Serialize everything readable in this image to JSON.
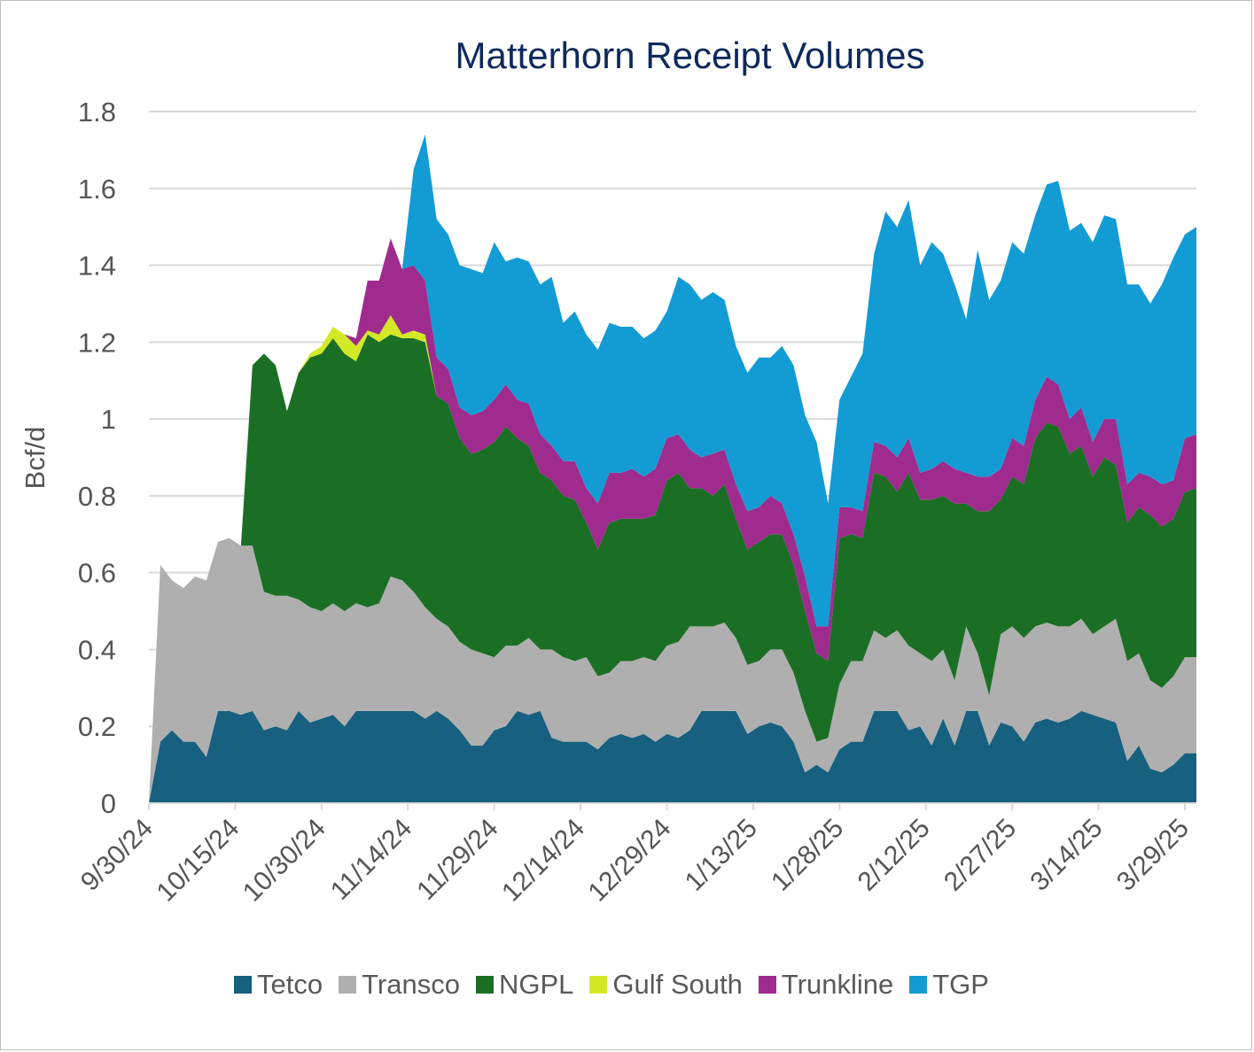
{
  "chart_data": {
    "type": "area",
    "stacked": true,
    "title": "Matterhorn Receipt Volumes",
    "ylabel": "Bcf/d",
    "xlabel": "",
    "ylim": [
      0,
      1.8
    ],
    "y_ticks": [
      "0",
      "0.2",
      "0.4",
      "0.6",
      "0.8",
      "1",
      "1.2",
      "1.4",
      "1.6",
      "1.8"
    ],
    "x_ticks": [
      "9/30/24",
      "10/15/24",
      "10/30/24",
      "11/14/24",
      "11/29/24",
      "12/14/24",
      "12/29/24",
      "1/13/25",
      "1/28/25",
      "2/12/25",
      "2/27/25",
      "3/14/25",
      "3/29/25"
    ],
    "gridlines": true,
    "legend_position": "bottom",
    "day_range": [
      0,
      182
    ],
    "series": [
      {
        "name": "Tetco",
        "color": "#17607f",
        "x": [
          0,
          2,
          4,
          6,
          8,
          10,
          12,
          14,
          16,
          18,
          20,
          22,
          24,
          26,
          28,
          30,
          32,
          34,
          36,
          38,
          40,
          42,
          44,
          46,
          48,
          50,
          52,
          54,
          56,
          58,
          60,
          62,
          64,
          66,
          68,
          70,
          72,
          74,
          76,
          78,
          80,
          82,
          84,
          86,
          88,
          90,
          92,
          94,
          96,
          98,
          100,
          102,
          104,
          106,
          108,
          110,
          112,
          114,
          116,
          118,
          120,
          122,
          124,
          126,
          128,
          130,
          132,
          134,
          136,
          138,
          140,
          142,
          144,
          146,
          148,
          150,
          152,
          154,
          156,
          158,
          160,
          162,
          164,
          166,
          168,
          170,
          172,
          174,
          176,
          178,
          180,
          182
        ],
        "values": [
          0,
          0.16,
          0.19,
          0.16,
          0.16,
          0.12,
          0.24,
          0.24,
          0.23,
          0.24,
          0.19,
          0.2,
          0.19,
          0.24,
          0.21,
          0.22,
          0.23,
          0.2,
          0.24,
          0.24,
          0.24,
          0.24,
          0.24,
          0.24,
          0.22,
          0.24,
          0.22,
          0.19,
          0.15,
          0.15,
          0.19,
          0.2,
          0.24,
          0.23,
          0.24,
          0.17,
          0.16,
          0.16,
          0.16,
          0.14,
          0.17,
          0.18,
          0.17,
          0.18,
          0.16,
          0.18,
          0.17,
          0.19,
          0.24,
          0.24,
          0.24,
          0.24,
          0.18,
          0.2,
          0.21,
          0.2,
          0.16,
          0.08,
          0.1,
          0.08,
          0.14,
          0.16,
          0.16,
          0.24,
          0.24,
          0.24,
          0.19,
          0.2,
          0.15,
          0.22,
          0.15,
          0.24,
          0.24,
          0.15,
          0.21,
          0.2,
          0.16,
          0.21,
          0.22,
          0.21,
          0.22,
          0.24,
          0.23,
          0.22,
          0.21,
          0.11,
          0.15,
          0.09,
          0.08,
          0.1,
          0.13,
          0.13
        ]
      },
      {
        "name": "Transco",
        "color": "#afafaf",
        "x": [
          0,
          2,
          4,
          6,
          8,
          10,
          12,
          14,
          16,
          18,
          20,
          22,
          24,
          26,
          28,
          30,
          32,
          34,
          36,
          38,
          40,
          42,
          44,
          46,
          48,
          50,
          52,
          54,
          56,
          58,
          60,
          62,
          64,
          66,
          68,
          70,
          72,
          74,
          76,
          78,
          80,
          82,
          84,
          86,
          88,
          90,
          92,
          94,
          96,
          98,
          100,
          102,
          104,
          106,
          108,
          110,
          112,
          114,
          116,
          118,
          120,
          122,
          124,
          126,
          128,
          130,
          132,
          134,
          136,
          138,
          140,
          142,
          144,
          146,
          148,
          150,
          152,
          154,
          156,
          158,
          160,
          162,
          164,
          166,
          168,
          170,
          172,
          174,
          176,
          178,
          180,
          182
        ],
        "values": [
          0,
          0.46,
          0.39,
          0.4,
          0.43,
          0.46,
          0.44,
          0.45,
          0.44,
          0.43,
          0.36,
          0.34,
          0.35,
          0.29,
          0.3,
          0.28,
          0.29,
          0.3,
          0.28,
          0.27,
          0.28,
          0.35,
          0.34,
          0.31,
          0.29,
          0.24,
          0.24,
          0.23,
          0.25,
          0.24,
          0.19,
          0.21,
          0.17,
          0.2,
          0.16,
          0.23,
          0.22,
          0.21,
          0.22,
          0.19,
          0.17,
          0.19,
          0.2,
          0.2,
          0.21,
          0.23,
          0.25,
          0.27,
          0.22,
          0.22,
          0.23,
          0.19,
          0.18,
          0.17,
          0.19,
          0.2,
          0.18,
          0.16,
          0.06,
          0.09,
          0.17,
          0.21,
          0.21,
          0.21,
          0.19,
          0.21,
          0.22,
          0.19,
          0.22,
          0.18,
          0.17,
          0.22,
          0.15,
          0.13,
          0.23,
          0.26,
          0.27,
          0.25,
          0.25,
          0.25,
          0.24,
          0.24,
          0.21,
          0.24,
          0.27,
          0.26,
          0.24,
          0.23,
          0.22,
          0.23,
          0.25,
          0.25
        ]
      },
      {
        "name": "NGPL",
        "color": "#1b6f25",
        "x": [
          0,
          2,
          4,
          6,
          8,
          10,
          12,
          14,
          16,
          18,
          20,
          22,
          24,
          26,
          28,
          30,
          32,
          34,
          36,
          38,
          40,
          42,
          44,
          46,
          48,
          50,
          52,
          54,
          56,
          58,
          60,
          62,
          64,
          66,
          68,
          70,
          72,
          74,
          76,
          78,
          80,
          82,
          84,
          86,
          88,
          90,
          92,
          94,
          96,
          98,
          100,
          102,
          104,
          106,
          108,
          110,
          112,
          114,
          116,
          118,
          120,
          122,
          124,
          126,
          128,
          130,
          132,
          134,
          136,
          138,
          140,
          142,
          144,
          146,
          148,
          150,
          152,
          154,
          156,
          158,
          160,
          162,
          164,
          166,
          168,
          170,
          172,
          174,
          176,
          178,
          180,
          182
        ],
        "values": [
          0,
          0,
          0,
          0,
          0,
          0,
          0,
          0,
          0,
          0.47,
          0.62,
          0.6,
          0.48,
          0.59,
          0.65,
          0.67,
          0.69,
          0.67,
          0.63,
          0.71,
          0.68,
          0.63,
          0.63,
          0.66,
          0.69,
          0.58,
          0.58,
          0.53,
          0.51,
          0.53,
          0.56,
          0.57,
          0.54,
          0.5,
          0.46,
          0.44,
          0.42,
          0.42,
          0.35,
          0.33,
          0.39,
          0.37,
          0.37,
          0.36,
          0.38,
          0.43,
          0.44,
          0.36,
          0.36,
          0.34,
          0.36,
          0.31,
          0.3,
          0.31,
          0.3,
          0.3,
          0.28,
          0.26,
          0.23,
          0.2,
          0.38,
          0.33,
          0.32,
          0.41,
          0.42,
          0.36,
          0.45,
          0.4,
          0.42,
          0.4,
          0.46,
          0.32,
          0.37,
          0.48,
          0.35,
          0.39,
          0.4,
          0.49,
          0.52,
          0.52,
          0.45,
          0.45,
          0.41,
          0.44,
          0.4,
          0.36,
          0.38,
          0.43,
          0.42,
          0.41,
          0.43,
          0.44
        ]
      },
      {
        "name": "Gulf South",
        "color": "#d4e925",
        "x": [
          0,
          22,
          24,
          26,
          28,
          30,
          32,
          34,
          36,
          38,
          40,
          42,
          44,
          46,
          48,
          50,
          52,
          54,
          182
        ],
        "values": [
          0,
          0,
          0,
          0,
          0.01,
          0.02,
          0.03,
          0.05,
          0.04,
          0.01,
          0.02,
          0.05,
          0.01,
          0.02,
          0.02,
          0,
          0,
          0,
          0
        ]
      },
      {
        "name": "Trunkline",
        "color": "#9f2b8e",
        "x": [
          0,
          22,
          24,
          26,
          28,
          30,
          32,
          34,
          36,
          38,
          40,
          42,
          44,
          46,
          48,
          50,
          52,
          54,
          56,
          58,
          60,
          62,
          64,
          66,
          68,
          70,
          72,
          74,
          76,
          78,
          80,
          82,
          84,
          86,
          88,
          90,
          92,
          94,
          96,
          98,
          100,
          102,
          104,
          106,
          108,
          110,
          112,
          114,
          116,
          118,
          120,
          122,
          124,
          126,
          128,
          130,
          132,
          134,
          136,
          138,
          140,
          142,
          144,
          146,
          148,
          150,
          152,
          154,
          156,
          158,
          160,
          162,
          164,
          166,
          168,
          170,
          172,
          174,
          176,
          178,
          180,
          182
        ],
        "values": [
          0,
          0,
          0,
          0,
          0,
          0,
          0,
          0,
          0.02,
          0.13,
          0.14,
          0.2,
          0.17,
          0.17,
          0.14,
          0.1,
          0.09,
          0.08,
          0.1,
          0.1,
          0.11,
          0.11,
          0.1,
          0.11,
          0.1,
          0.09,
          0.09,
          0.1,
          0.09,
          0.12,
          0.13,
          0.12,
          0.13,
          0.11,
          0.12,
          0.11,
          0.1,
          0.1,
          0.08,
          0.11,
          0.09,
          0.09,
          0.1,
          0.09,
          0.1,
          0.08,
          0.08,
          0.09,
          0.07,
          0.09,
          0.08,
          0.07,
          0.07,
          0.08,
          0.08,
          0.09,
          0.09,
          0.07,
          0.08,
          0.09,
          0.09,
          0.08,
          0.09,
          0.09,
          0.08,
          0.1,
          0.1,
          0.1,
          0.12,
          0.11,
          0.09,
          0.1,
          0.09,
          0.1,
          0.12,
          0.1,
          0.09,
          0.1,
          0.11,
          0.1,
          0.14,
          0.14
        ]
      },
      {
        "name": "TGP",
        "color": "#139bd4",
        "x": [
          0,
          44,
          46,
          48,
          50,
          52,
          54,
          56,
          58,
          60,
          62,
          64,
          66,
          68,
          70,
          72,
          74,
          76,
          78,
          80,
          82,
          84,
          86,
          88,
          90,
          92,
          94,
          96,
          98,
          100,
          102,
          104,
          106,
          108,
          110,
          112,
          114,
          116,
          118,
          120,
          122,
          124,
          126,
          128,
          130,
          132,
          134,
          136,
          138,
          140,
          142,
          144,
          146,
          148,
          150,
          152,
          154,
          156,
          158,
          160,
          162,
          164,
          166,
          168,
          170,
          172,
          174,
          176,
          178,
          180,
          182
        ],
        "values": [
          0,
          0,
          0.25,
          0.38,
          0.36,
          0.35,
          0.37,
          0.38,
          0.36,
          0.41,
          0.32,
          0.37,
          0.37,
          0.39,
          0.44,
          0.36,
          0.39,
          0.4,
          0.4,
          0.39,
          0.38,
          0.37,
          0.36,
          0.36,
          0.33,
          0.41,
          0.43,
          0.41,
          0.42,
          0.39,
          0.36,
          0.36,
          0.39,
          0.36,
          0.41,
          0.44,
          0.42,
          0.48,
          0.32,
          0.28,
          0.34,
          0.41,
          0.49,
          0.61,
          0.6,
          0.62,
          0.54,
          0.59,
          0.54,
          0.48,
          0.4,
          0.59,
          0.46,
          0.49,
          0.51,
          0.5,
          0.48,
          0.5,
          0.53,
          0.49,
          0.48,
          0.52,
          0.53,
          0.52,
          0.52,
          0.49,
          0.45,
          0.52,
          0.58,
          0.53,
          0.54
        ]
      }
    ]
  }
}
